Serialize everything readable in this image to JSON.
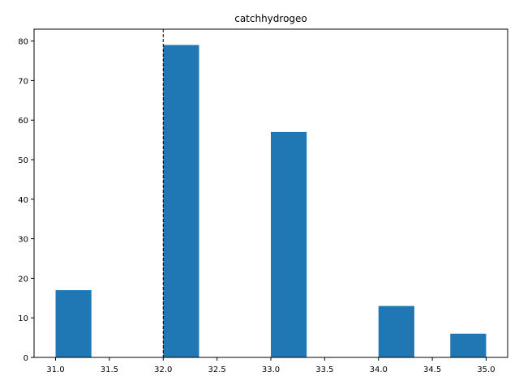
{
  "chart_data": {
    "type": "bar",
    "title": "catchhydrogeo",
    "xlabel": "",
    "ylabel": "",
    "xlim": [
      30.8,
      35.2
    ],
    "ylim": [
      0,
      83
    ],
    "bar_color": "#1f77b4",
    "bins": [
      {
        "x0": 31.0,
        "x1": 31.333,
        "value": 17
      },
      {
        "x0": 31.333,
        "x1": 31.667,
        "value": 0
      },
      {
        "x0": 31.667,
        "x1": 32.0,
        "value": 0
      },
      {
        "x0": 32.0,
        "x1": 32.333,
        "value": 79
      },
      {
        "x0": 32.333,
        "x1": 32.667,
        "value": 0
      },
      {
        "x0": 32.667,
        "x1": 33.0,
        "value": 0
      },
      {
        "x0": 33.0,
        "x1": 33.333,
        "value": 57
      },
      {
        "x0": 33.333,
        "x1": 33.667,
        "value": 0
      },
      {
        "x0": 33.667,
        "x1": 34.0,
        "value": 0
      },
      {
        "x0": 34.0,
        "x1": 34.333,
        "value": 13
      },
      {
        "x0": 34.333,
        "x1": 34.667,
        "value": 0
      },
      {
        "x0": 34.667,
        "x1": 35.0,
        "value": 6
      }
    ],
    "xticks": [
      31.0,
      31.5,
      32.0,
      32.5,
      33.0,
      33.5,
      34.0,
      34.5,
      35.0
    ],
    "xtick_labels": [
      "31.0",
      "31.5",
      "32.0",
      "32.5",
      "33.0",
      "33.5",
      "34.0",
      "34.5",
      "35.0"
    ],
    "yticks": [
      0,
      10,
      20,
      30,
      40,
      50,
      60,
      70,
      80
    ],
    "ytick_labels": [
      "0",
      "10",
      "20",
      "30",
      "40",
      "50",
      "60",
      "70",
      "80"
    ],
    "vline": {
      "x": 32.0,
      "style": "dashed",
      "color": "#000000"
    },
    "grid": false,
    "legend": "none"
  }
}
